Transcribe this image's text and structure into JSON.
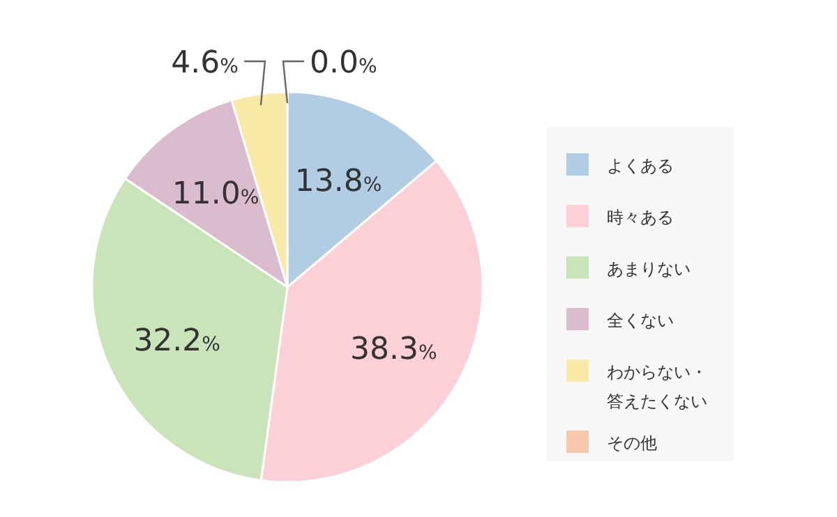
{
  "chart_data": {
    "type": "pie",
    "categories": [
      "よくある",
      "時々ある",
      "あまりない",
      "全くない",
      "わからない・答えたくない",
      "その他"
    ],
    "values": [
      13.8,
      38.3,
      32.2,
      11.0,
      4.6,
      0.0
    ],
    "colors": [
      "#b0cde4",
      "#fdd0d8",
      "#c9e4b8",
      "#dbbccf",
      "#f8e9a6",
      "#f6c9ac"
    ],
    "value_labels": [
      "13.8%",
      "38.3%",
      "32.2%",
      "11.0%",
      "4.6%",
      "0.0%"
    ],
    "legend": "right"
  }
}
